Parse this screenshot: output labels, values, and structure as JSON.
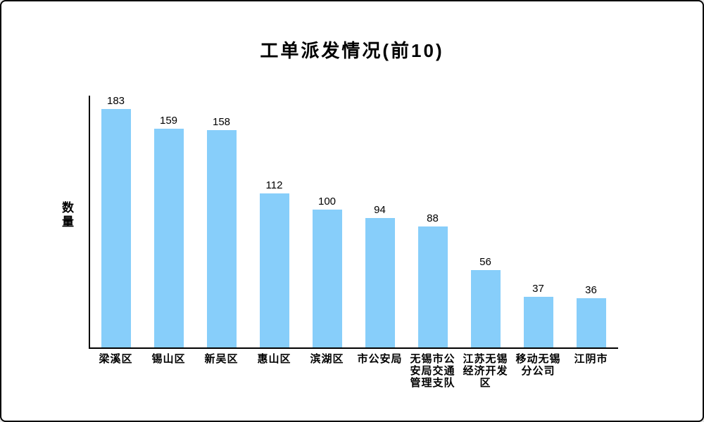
{
  "window": {
    "background_color": "#ffffff",
    "border_color": "#000000"
  },
  "chart_data": {
    "type": "bar",
    "title": "工单派发情况(前10)",
    "xlabel": "",
    "ylabel": "数量",
    "categories": [
      "梁溪区",
      "锡山区",
      "新吴区",
      "惠山区",
      "滨湖区",
      "市公安局",
      "无锡市公安局交通管理支队",
      "江苏无锡经济开发区",
      "移动无锡分公司",
      "江阴市"
    ],
    "values": [
      183,
      159,
      158,
      112,
      100,
      94,
      88,
      56,
      37,
      36
    ],
    "ylim": [
      0,
      183
    ],
    "grid": false,
    "legend_position": "none",
    "value_labels_shown": true,
    "bar_color": "#87CEFA",
    "axis_color": "#000000",
    "text_color": "#000000"
  }
}
